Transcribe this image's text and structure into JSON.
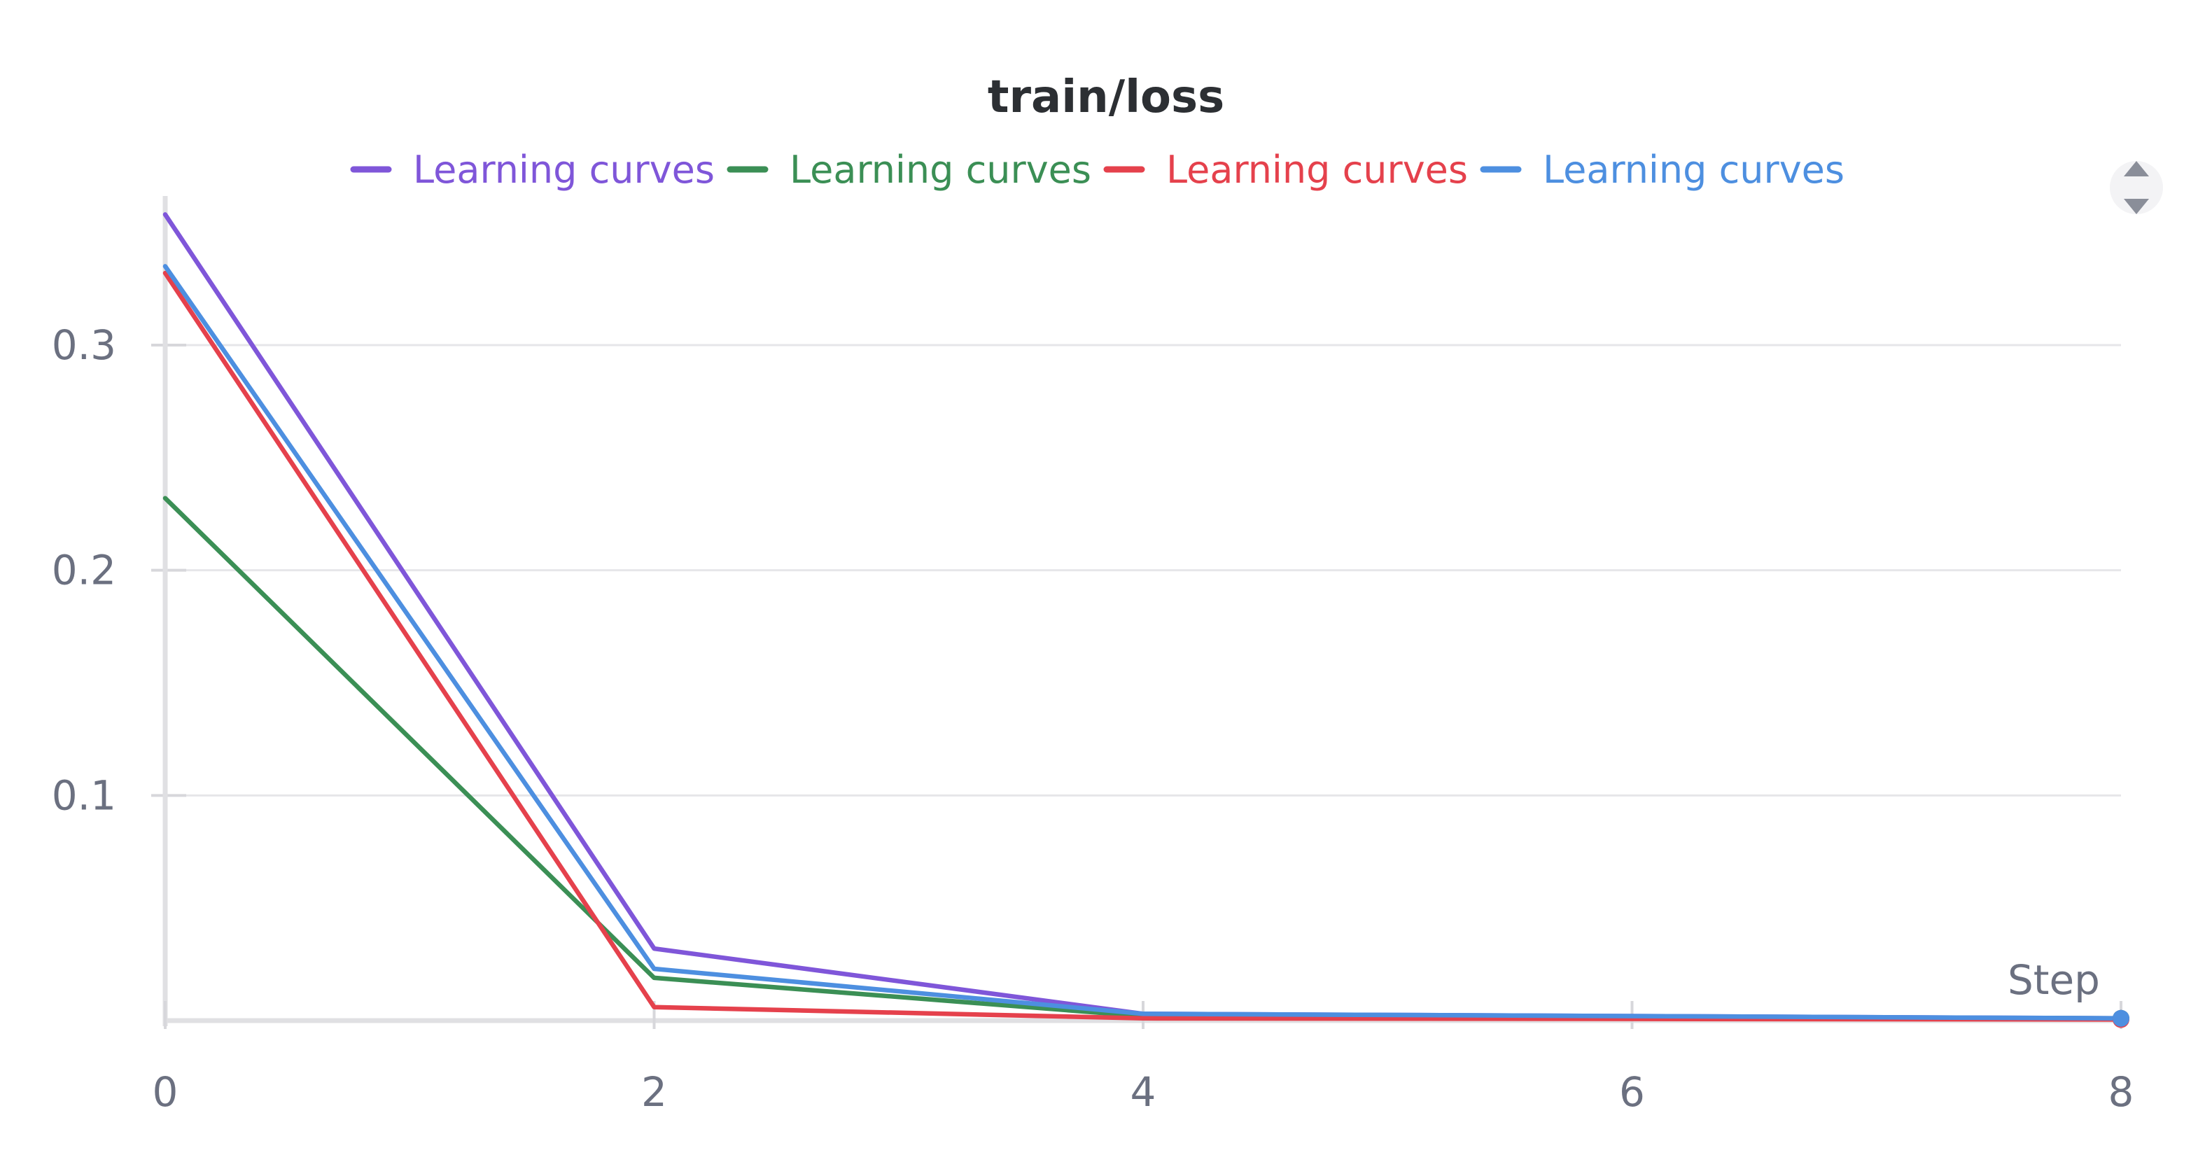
{
  "chart_data": {
    "type": "line",
    "title": "train/loss",
    "xlabel": "Step",
    "ylabel": "",
    "xlim": [
      0,
      8
    ],
    "ylim": [
      0,
      0.36
    ],
    "x_ticks": [
      0,
      2,
      4,
      6,
      8
    ],
    "y_ticks": [
      0.1,
      0.2,
      0.3
    ],
    "grid": true,
    "legend_position": "top-center",
    "series": [
      {
        "name": "Learning curves",
        "color": "#7f56d9",
        "points": [
          [
            0,
            0.358
          ],
          [
            2,
            0.032
          ],
          [
            4,
            0.003
          ],
          [
            8,
            0.001
          ]
        ]
      },
      {
        "name": "Learning curves",
        "color": "#3b8f55",
        "points": [
          [
            0,
            0.232
          ],
          [
            2,
            0.019
          ],
          [
            4,
            0.002
          ],
          [
            8,
            0.001
          ]
        ]
      },
      {
        "name": "Learning curves",
        "color": "#e5414c",
        "points": [
          [
            0,
            0.332
          ],
          [
            2,
            0.006
          ],
          [
            4,
            0.001
          ],
          [
            8,
            0.0005
          ]
        ]
      },
      {
        "name": "Learning curves",
        "color": "#4d8fe0",
        "points": [
          [
            0,
            0.335
          ],
          [
            2,
            0.023
          ],
          [
            4,
            0.003
          ],
          [
            8,
            0.001
          ]
        ]
      }
    ]
  }
}
